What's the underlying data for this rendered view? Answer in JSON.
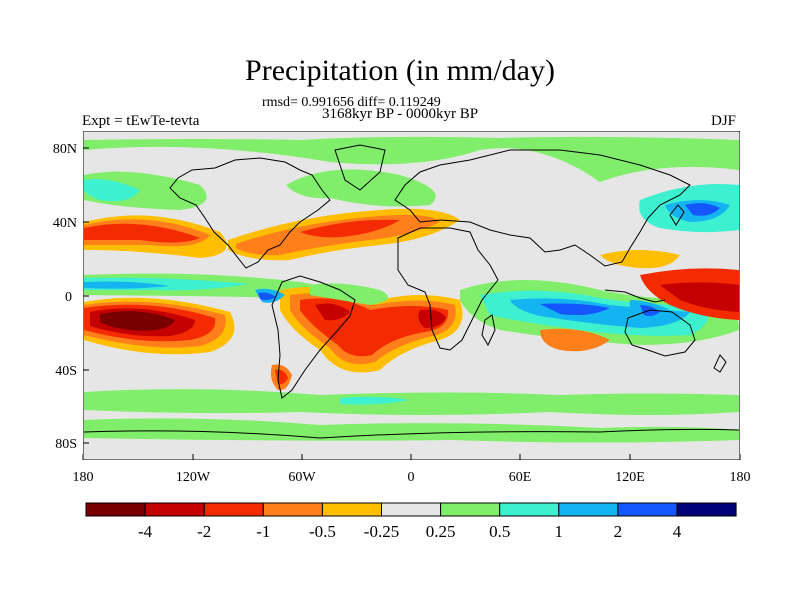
{
  "figure": {
    "title": "Precipitation (in mm/day)",
    "stats_line": "rmsd= 0.991656 diff= 0.119249",
    "period_line": "3168kyr BP - 0000kyr BP",
    "left_label": "Expt = tEwTe-tevta",
    "right_label": "DJF"
  },
  "axes": {
    "lat_ticks": [
      "80N",
      "40N",
      "0",
      "40S",
      "80S"
    ],
    "lon_ticks": [
      "180",
      "120W",
      "60W",
      "0",
      "60E",
      "120E",
      "180"
    ]
  },
  "colorbar": {
    "labels": [
      "-4",
      "-2",
      "-1",
      "-0.5",
      "-0.25",
      "0.25",
      "0.5",
      "1",
      "2",
      "4"
    ],
    "colors": [
      "#7a0000",
      "#c40000",
      "#f42a00",
      "#ff7f1a",
      "#ffbe00",
      "#e6e6e6",
      "#80ee6a",
      "#3cf0d0",
      "#14b4f0",
      "#1457ff",
      "#00007a"
    ]
  },
  "map_colors": {
    "background": "#e6e6e6",
    "dry_strong": "#7a0000",
    "dry_mid": "#c40000",
    "dry": "#f42a00",
    "dry_light": "#ff7f1a",
    "dry_faint": "#ffbe00",
    "wet_faint": "#80ee6a",
    "wet_light": "#3cf0d0",
    "wet": "#14b4f0",
    "wet_mid": "#1457ff",
    "wet_strong": "#00007a"
  }
}
